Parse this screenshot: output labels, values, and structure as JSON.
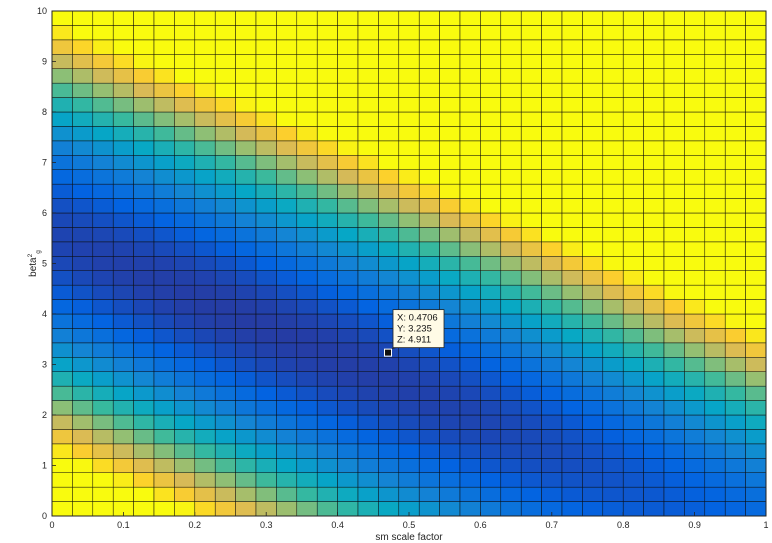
{
  "chart_data": {
    "type": "heatmap",
    "title": "",
    "xlabel": "sm scale factor",
    "ylabel": {
      "base": "beta",
      "superscript": "2",
      "subscript": "g"
    },
    "xlim": [
      0,
      1
    ],
    "ylim": [
      0,
      10
    ],
    "x_ticks": [
      "0",
      "0.1",
      "0.2",
      "0.3",
      "0.4",
      "0.5",
      "0.6",
      "0.7",
      "0.8",
      "0.9",
      "1"
    ],
    "y_ticks": [
      "0",
      "1",
      "2",
      "3",
      "4",
      "5",
      "6",
      "7",
      "8",
      "9",
      "10"
    ],
    "grid_cells": {
      "nx": 35,
      "ny": 35
    },
    "colormap": "parula",
    "color_range_estimate": [
      3.5,
      15
    ],
    "surface_model": {
      "description": "Bowl-shaped surface with a diagonal valley running from high beta at x=0 down to low beta at x=1; maximum in the top-right corner.",
      "valley": [
        [
          0,
          6.3
        ],
        [
          0.47,
          3.2
        ],
        [
          1,
          0.0
        ]
      ],
      "corner_values_estimate": {
        "x0_y0": 9.6,
        "x0_y10": 9.8,
        "x1_y0": 4.0,
        "x1_y10": 15.0
      }
    },
    "data_tip": {
      "x": 0.4706,
      "y": 3.235,
      "z": 4.911,
      "x_label": "X: 0.4706",
      "y_label": "Y: 3.235",
      "z_label": "Z: 4.911"
    },
    "grid": true,
    "legend": "none"
  }
}
